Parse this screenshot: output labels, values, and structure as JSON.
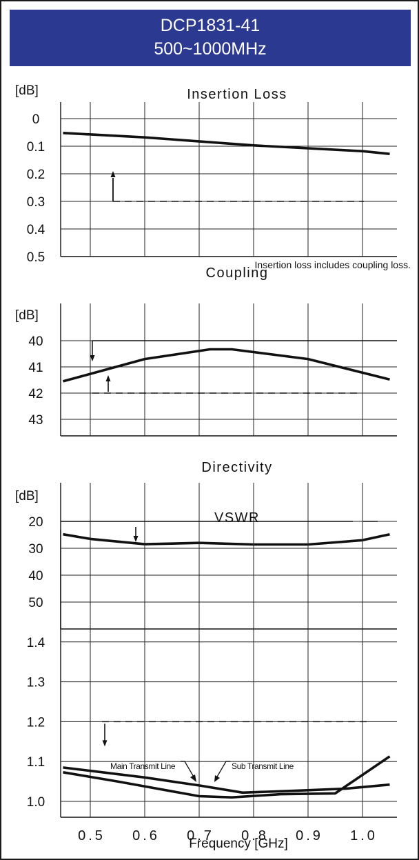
{
  "header": {
    "model": "DCP1831-41",
    "range": "500~1000MHz"
  },
  "chart_data": [
    {
      "type": "line",
      "title": "Insertion Loss",
      "unit_label": "[dB]",
      "ylim": [
        0,
        0.5
      ],
      "y_inverted": true,
      "yticks": [
        "0",
        "0.1",
        "0.2",
        "0.3",
        "0.4",
        "0.5"
      ],
      "grid": true,
      "note": "Insertion loss includes coupling loss.",
      "series": [
        {
          "values": [
            [
              0.45,
              0.052
            ],
            [
              0.6,
              0.068
            ],
            [
              0.8,
              0.097
            ],
            [
              1.0,
              0.118
            ],
            [
              1.05,
              0.128
            ]
          ]
        }
      ],
      "limit": {
        "y": 0.3,
        "x_range": [
          0.5,
          1.0
        ]
      },
      "limit_arrows": [
        {
          "x": 0.54,
          "y_start": 0.3,
          "y_end": 0.2,
          "direction": "up"
        }
      ]
    },
    {
      "type": "line",
      "title": "Coupling",
      "unit_label": "[dB]",
      "ylim": [
        39,
        43.5
      ],
      "y_inverted": true,
      "yticks": [
        "40",
        "41",
        "42",
        "43"
      ],
      "grid": true,
      "series": [
        {
          "values": [
            [
              0.45,
              41.55
            ],
            [
              0.6,
              40.7
            ],
            [
              0.72,
              40.33
            ],
            [
              0.76,
              40.33
            ],
            [
              0.9,
              40.7
            ],
            [
              1.05,
              41.48
            ]
          ]
        }
      ],
      "limit_upper": {
        "y": 40,
        "x_range": [
          0.44,
          1.05
        ],
        "drop_x": 0.5
      },
      "limit_lower": {
        "y": 42,
        "x_range": [
          0.5,
          1.0
        ]
      },
      "limit_arrows": [
        {
          "x": 0.5,
          "y_start": 40,
          "y_end": 41,
          "direction": "down"
        },
        {
          "x": 0.53,
          "y_start": 42,
          "y_end": 41.5,
          "direction": "up"
        }
      ]
    },
    {
      "type": "line",
      "title": "Directivity",
      "unit_label": "[dB]",
      "ylim": [
        10,
        55
      ],
      "y_inverted": true,
      "yticks": [
        "20",
        "30",
        "40",
        "50"
      ],
      "grid": true,
      "series": [
        {
          "values": [
            [
              0.45,
              24.8
            ],
            [
              0.5,
              26.5
            ],
            [
              0.6,
              28.5
            ],
            [
              0.7,
              28
            ],
            [
              0.8,
              28.6
            ],
            [
              0.9,
              28.6
            ],
            [
              1.0,
              27
            ],
            [
              1.05,
              24.8
            ]
          ]
        }
      ],
      "limit": {
        "y": 20,
        "x_range": [
          0.45,
          1.0
        ]
      },
      "limit_arrows": [
        {
          "x": 0.58,
          "y_start": 20,
          "y_end": 25,
          "direction": "down"
        }
      ]
    },
    {
      "type": "line",
      "title": "VSWR",
      "ylim": [
        0.95,
        1.45
      ],
      "yticks": [
        "1.4",
        "1.3",
        "1.2",
        "1.1",
        "1.0"
      ],
      "grid": true,
      "xticks": [
        "0.5",
        "0.6",
        "0.7",
        "0.8",
        "0.9",
        "1.0"
      ],
      "xlabel": "Frequency [GHz]",
      "series": [
        {
          "name": "Main Transmit Line",
          "values": [
            [
              0.45,
              1.085
            ],
            [
              0.6,
              1.06
            ],
            [
              0.7,
              1.04
            ],
            [
              0.78,
              1.022
            ],
            [
              0.88,
              1.027
            ],
            [
              0.97,
              1.032
            ],
            [
              1.05,
              1.042
            ]
          ]
        },
        {
          "name": "Sub Transmit Line",
          "values": [
            [
              0.45,
              1.073
            ],
            [
              0.55,
              1.05
            ],
            [
              0.7,
              1.013
            ],
            [
              0.76,
              1.01
            ],
            [
              0.85,
              1.018
            ],
            [
              0.95,
              1.02
            ],
            [
              1.05,
              1.113
            ]
          ]
        }
      ],
      "limit": {
        "y": 1.2,
        "x_range": [
          0.51,
          0.98
        ]
      },
      "limit_arrows": [
        {
          "x": 0.53,
          "y_start": 1.2,
          "y_end": 1.15,
          "direction": "down"
        }
      ]
    }
  ]
}
